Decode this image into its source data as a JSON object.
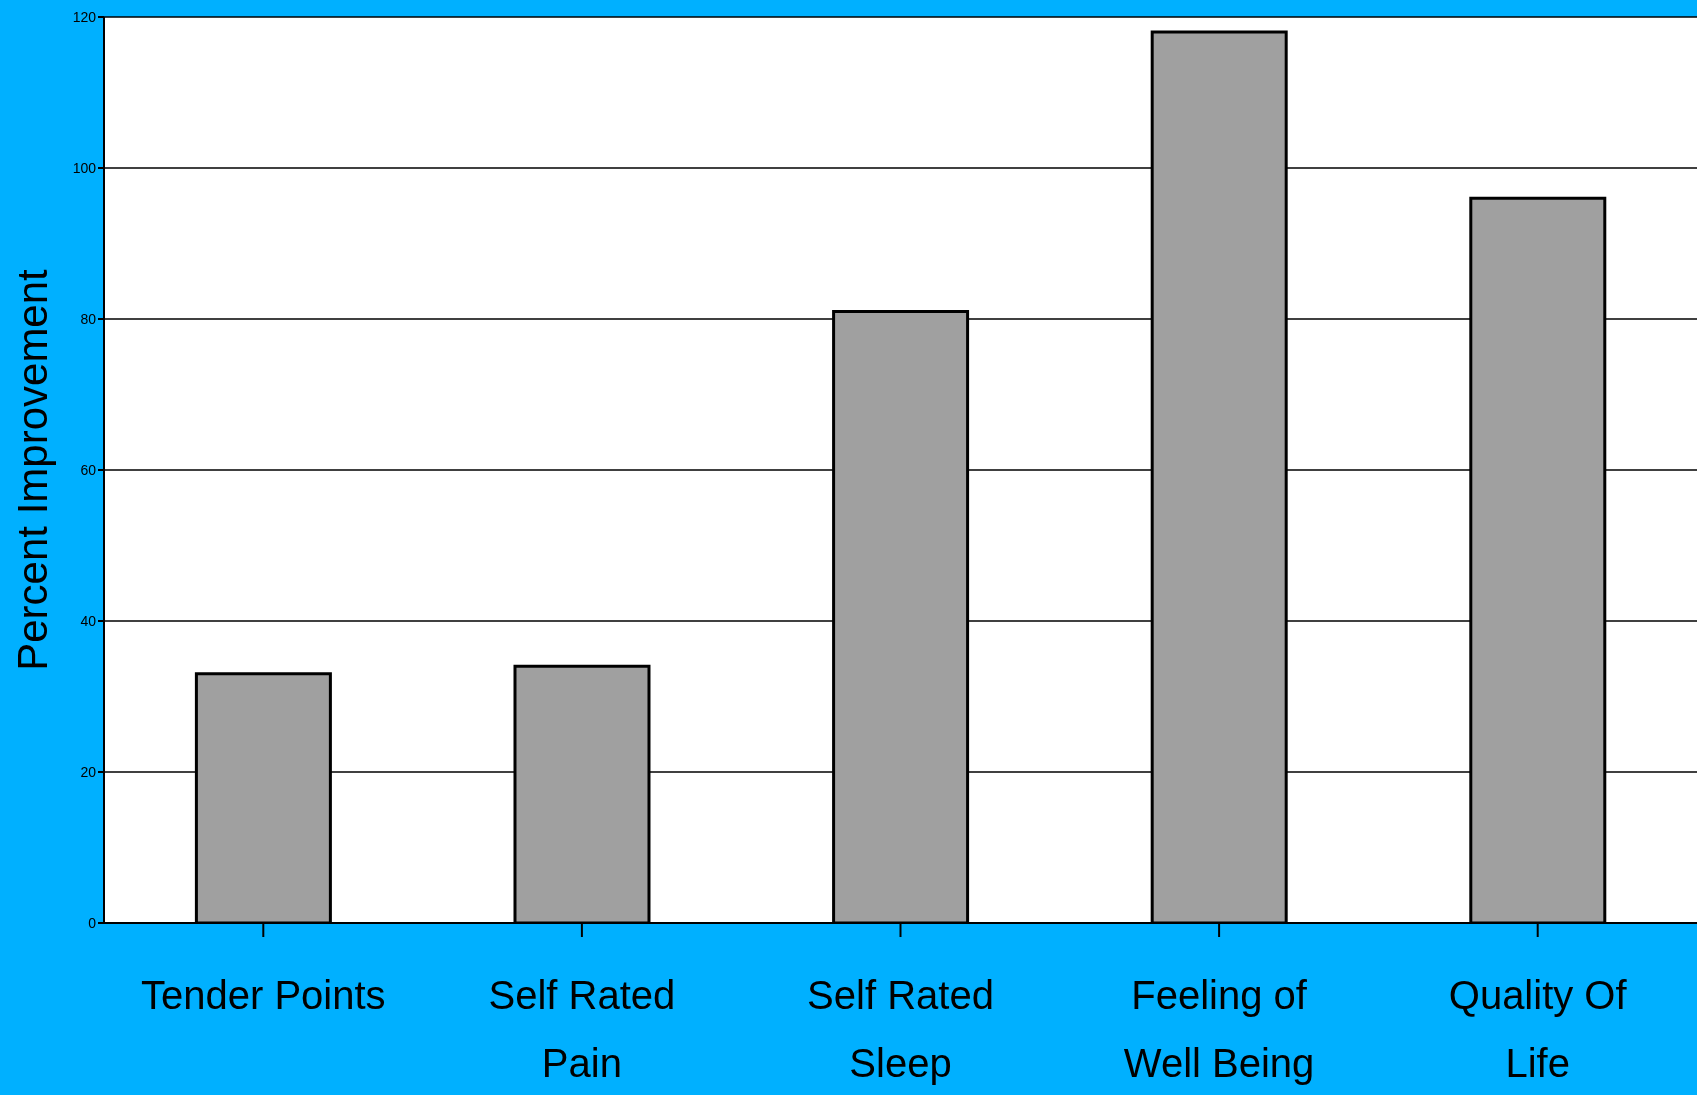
{
  "chart_data": {
    "type": "bar",
    "ylabel": "Percent Improvement",
    "categories": [
      "Tender Points",
      "Self Rated Pain",
      "Self Rated Sleep",
      "Feeling of Well Being",
      "Quality Of Life"
    ],
    "values": [
      33,
      34,
      81,
      118,
      96
    ],
    "color": "#a0a0a0",
    "ylim": [
      0,
      120
    ],
    "yticks": [
      0,
      20,
      40,
      60,
      80,
      100,
      120
    ],
    "grid": "y",
    "legend": false
  }
}
